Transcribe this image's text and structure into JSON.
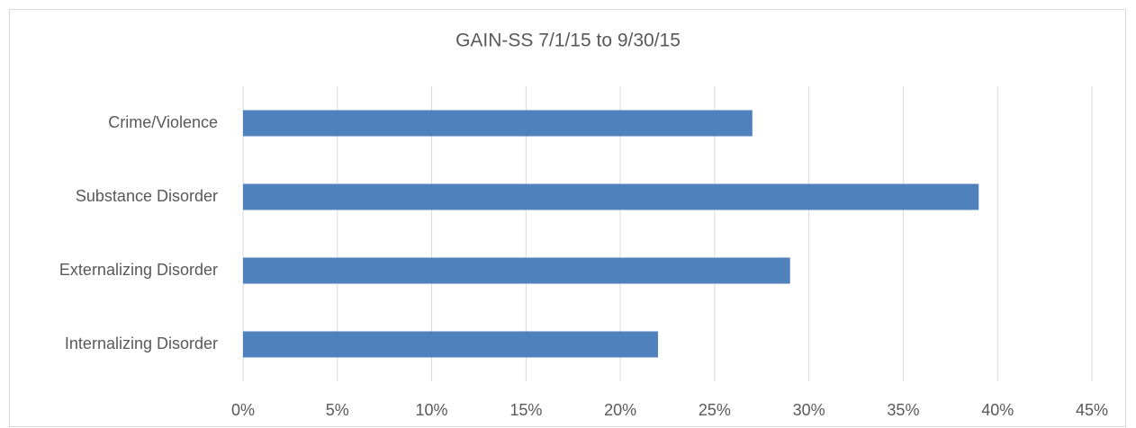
{
  "chart_data": {
    "type": "bar",
    "orientation": "horizontal",
    "title": "GAIN-SS 7/1/15 to 9/30/15",
    "categories": [
      "Crime/Violence",
      "Substance Disorder",
      "Externalizing Disorder",
      "Internalizing Disorder"
    ],
    "values": [
      27,
      39,
      29,
      22
    ],
    "color": "#4f81bd",
    "xlim": [
      0,
      45
    ],
    "xticks": [
      {
        "value": 0,
        "label": "0%"
      },
      {
        "value": 5,
        "label": "5%"
      },
      {
        "value": 10,
        "label": "10%"
      },
      {
        "value": 15,
        "label": "15%"
      },
      {
        "value": 20,
        "label": "20%"
      },
      {
        "value": 25,
        "label": "25%"
      },
      {
        "value": 30,
        "label": "30%"
      },
      {
        "value": 35,
        "label": "35%"
      },
      {
        "value": 40,
        "label": "40%"
      },
      {
        "value": 45,
        "label": "45%"
      }
    ],
    "grid": true
  }
}
